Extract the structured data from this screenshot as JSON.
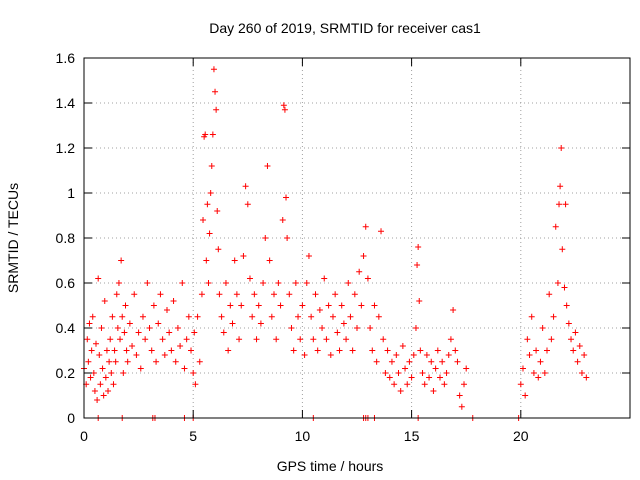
{
  "chart_data": {
    "type": "scatter",
    "title": "Day 260 of 2019, SRMTID for receiver cas1",
    "xlabel": "GPS time / hours",
    "ylabel": "SRMTID / TECUs",
    "xlim": [
      0,
      25
    ],
    "ylim": [
      0,
      1.6
    ],
    "xticks": [
      0,
      5,
      10,
      15,
      20
    ],
    "xtick_labels": [
      "0",
      "5",
      "10",
      "15",
      "20"
    ],
    "yticks": [
      0,
      0.2,
      0.4,
      0.6,
      0.8,
      1,
      1.2,
      1.4,
      1.6
    ],
    "ytick_labels": [
      "0",
      "0.2",
      "0.4",
      "0.6",
      "0.8",
      "1",
      "1.2",
      "1.4",
      "1.6"
    ],
    "grid": true,
    "marker": "+",
    "color": "#ff0000",
    "data_gaps_hours": [
      [
        17.6,
        19.9
      ]
    ],
    "series": [
      {
        "name": "cas1",
        "points": [
          [
            0.0,
            0.22
          ],
          [
            0.1,
            0.15
          ],
          [
            0.15,
            0.35
          ],
          [
            0.2,
            0.25
          ],
          [
            0.25,
            0.42
          ],
          [
            0.3,
            0.18
          ],
          [
            0.35,
            0.3
          ],
          [
            0.4,
            0.45
          ],
          [
            0.45,
            0.2
          ],
          [
            0.5,
            0.12
          ],
          [
            0.55,
            0.33
          ],
          [
            0.6,
            0.08
          ],
          [
            0.65,
            0.62
          ],
          [
            0.7,
            0.28
          ],
          [
            0.75,
            0.15
          ],
          [
            0.8,
            0.4
          ],
          [
            0.85,
            0.22
          ],
          [
            0.9,
            0.1
          ],
          [
            0.95,
            0.52
          ],
          [
            1.0,
            0.18
          ],
          [
            1.05,
            0.3
          ],
          [
            1.1,
            0.12
          ],
          [
            1.15,
            0.25
          ],
          [
            1.2,
            0.35
          ],
          [
            1.25,
            0.2
          ],
          [
            1.3,
            0.45
          ],
          [
            1.35,
            0.15
          ],
          [
            1.4,
            0.3
          ],
          [
            1.45,
            0.25
          ],
          [
            1.5,
            0.55
          ],
          [
            1.55,
            0.4
          ],
          [
            1.6,
            0.6
          ],
          [
            1.65,
            0.35
          ],
          [
            1.7,
            0.7
          ],
          [
            1.75,
            0.45
          ],
          [
            1.8,
            0.2
          ],
          [
            1.85,
            0.38
          ],
          [
            1.9,
            0.5
          ],
          [
            1.95,
            0.3
          ],
          [
            2.0,
            0.25
          ],
          [
            2.1,
            0.42
          ],
          [
            2.2,
            0.32
          ],
          [
            2.3,
            0.55
          ],
          [
            2.4,
            0.28
          ],
          [
            2.5,
            0.38
          ],
          [
            2.6,
            0.22
          ],
          [
            2.7,
            0.45
          ],
          [
            2.8,
            0.35
          ],
          [
            2.9,
            0.6
          ],
          [
            3.0,
            0.4
          ],
          [
            3.1,
            0.3
          ],
          [
            3.2,
            0.5
          ],
          [
            3.3,
            0.25
          ],
          [
            3.4,
            0.42
          ],
          [
            3.5,
            0.55
          ],
          [
            3.6,
            0.35
          ],
          [
            3.7,
            0.28
          ],
          [
            3.8,
            0.48
          ],
          [
            3.9,
            0.38
          ],
          [
            4.0,
            0.3
          ],
          [
            4.1,
            0.52
          ],
          [
            4.2,
            0.25
          ],
          [
            4.3,
            0.4
          ],
          [
            4.4,
            0.32
          ],
          [
            4.5,
            0.6
          ],
          [
            4.6,
            0.22
          ],
          [
            4.7,
            0.35
          ],
          [
            4.8,
            0.45
          ],
          [
            4.9,
            0.3
          ],
          [
            5.0,
            0.2
          ],
          [
            5.05,
            0.38
          ],
          [
            5.1,
            0.15
          ],
          [
            5.2,
            0.45
          ],
          [
            5.3,
            0.25
          ],
          [
            5.4,
            0.55
          ],
          [
            5.45,
            0.88
          ],
          [
            5.5,
            1.25
          ],
          [
            5.55,
            1.26
          ],
          [
            5.6,
            0.7
          ],
          [
            5.65,
            0.95
          ],
          [
            5.7,
            0.6
          ],
          [
            5.75,
            0.82
          ],
          [
            5.8,
            1.0
          ],
          [
            5.85,
            1.12
          ],
          [
            5.9,
            1.26
          ],
          [
            5.95,
            1.55
          ],
          [
            6.0,
            1.45
          ],
          [
            6.05,
            1.37
          ],
          [
            6.1,
            0.92
          ],
          [
            6.15,
            0.75
          ],
          [
            6.2,
            0.55
          ],
          [
            6.3,
            0.45
          ],
          [
            6.4,
            0.38
          ],
          [
            6.5,
            0.6
          ],
          [
            6.6,
            0.3
          ],
          [
            6.7,
            0.5
          ],
          [
            6.8,
            0.42
          ],
          [
            6.9,
            0.7
          ],
          [
            7.0,
            0.55
          ],
          [
            7.1,
            0.35
          ],
          [
            7.2,
            0.5
          ],
          [
            7.3,
            0.72
          ],
          [
            7.4,
            1.03
          ],
          [
            7.5,
            0.95
          ],
          [
            7.6,
            0.62
          ],
          [
            7.7,
            0.45
          ],
          [
            7.8,
            0.55
          ],
          [
            7.9,
            0.35
          ],
          [
            8.0,
            0.5
          ],
          [
            8.1,
            0.42
          ],
          [
            8.2,
            0.6
          ],
          [
            8.3,
            0.8
          ],
          [
            8.4,
            1.12
          ],
          [
            8.5,
            0.7
          ],
          [
            8.6,
            0.45
          ],
          [
            8.7,
            0.55
          ],
          [
            8.8,
            0.35
          ],
          [
            8.9,
            0.6
          ],
          [
            9.0,
            0.5
          ],
          [
            9.1,
            0.88
          ],
          [
            9.15,
            1.39
          ],
          [
            9.2,
            1.37
          ],
          [
            9.25,
            0.98
          ],
          [
            9.3,
            0.8
          ],
          [
            9.4,
            0.55
          ],
          [
            9.5,
            0.4
          ],
          [
            9.6,
            0.3
          ],
          [
            9.7,
            0.6
          ],
          [
            9.8,
            0.45
          ],
          [
            9.9,
            0.35
          ],
          [
            10.0,
            0.5
          ],
          [
            10.1,
            0.28
          ],
          [
            10.2,
            0.6
          ],
          [
            10.3,
            0.72
          ],
          [
            10.4,
            0.45
          ],
          [
            10.5,
            0.35
          ],
          [
            10.6,
            0.55
          ],
          [
            10.7,
            0.3
          ],
          [
            10.8,
            0.48
          ],
          [
            10.9,
            0.4
          ],
          [
            11.0,
            0.62
          ],
          [
            11.1,
            0.35
          ],
          [
            11.2,
            0.5
          ],
          [
            11.3,
            0.28
          ],
          [
            11.4,
            0.45
          ],
          [
            11.5,
            0.55
          ],
          [
            11.6,
            0.38
          ],
          [
            11.7,
            0.3
          ],
          [
            11.8,
            0.5
          ],
          [
            11.9,
            0.42
          ],
          [
            12.0,
            0.35
          ],
          [
            12.1,
            0.6
          ],
          [
            12.2,
            0.45
          ],
          [
            12.3,
            0.3
          ],
          [
            12.4,
            0.55
          ],
          [
            12.5,
            0.4
          ],
          [
            12.6,
            0.65
          ],
          [
            12.7,
            0.5
          ],
          [
            12.8,
            0.72
          ],
          [
            12.9,
            0.85
          ],
          [
            13.0,
            0.62
          ],
          [
            13.1,
            0.4
          ],
          [
            13.2,
            0.3
          ],
          [
            13.3,
            0.5
          ],
          [
            13.4,
            0.25
          ],
          [
            13.5,
            0.45
          ],
          [
            13.6,
            0.83
          ],
          [
            13.7,
            0.35
          ],
          [
            13.8,
            0.2
          ],
          [
            13.9,
            0.3
          ],
          [
            14.0,
            0.18
          ],
          [
            14.1,
            0.25
          ],
          [
            14.2,
            0.15
          ],
          [
            14.3,
            0.28
          ],
          [
            14.4,
            0.2
          ],
          [
            14.5,
            0.12
          ],
          [
            14.6,
            0.32
          ],
          [
            14.7,
            0.22
          ],
          [
            14.8,
            0.15
          ],
          [
            14.9,
            0.25
          ],
          [
            15.0,
            0.18
          ],
          [
            15.1,
            0.28
          ],
          [
            15.2,
            0.4
          ],
          [
            15.25,
            0.68
          ],
          [
            15.3,
            0.76
          ],
          [
            15.35,
            0.52
          ],
          [
            15.4,
            0.3
          ],
          [
            15.5,
            0.2
          ],
          [
            15.6,
            0.15
          ],
          [
            15.7,
            0.28
          ],
          [
            15.8,
            0.18
          ],
          [
            15.9,
            0.25
          ],
          [
            16.0,
            0.12
          ],
          [
            16.1,
            0.22
          ],
          [
            16.2,
            0.3
          ],
          [
            16.3,
            0.18
          ],
          [
            16.4,
            0.25
          ],
          [
            16.5,
            0.15
          ],
          [
            16.6,
            0.2
          ],
          [
            16.7,
            0.28
          ],
          [
            16.8,
            0.35
          ],
          [
            16.9,
            0.48
          ],
          [
            17.0,
            0.3
          ],
          [
            17.1,
            0.25
          ],
          [
            17.2,
            0.1
          ],
          [
            17.3,
            0.05
          ],
          [
            17.4,
            0.15
          ],
          [
            17.5,
            0.22
          ],
          [
            20.0,
            0.15
          ],
          [
            20.1,
            0.22
          ],
          [
            20.2,
            0.1
          ],
          [
            20.3,
            0.35
          ],
          [
            20.4,
            0.28
          ],
          [
            20.5,
            0.45
          ],
          [
            20.6,
            0.2
          ],
          [
            20.7,
            0.3
          ],
          [
            20.8,
            0.18
          ],
          [
            20.9,
            0.25
          ],
          [
            21.0,
            0.4
          ],
          [
            21.1,
            0.2
          ],
          [
            21.2,
            0.3
          ],
          [
            21.3,
            0.55
          ],
          [
            21.4,
            0.35
          ],
          [
            21.5,
            0.45
          ],
          [
            21.6,
            0.85
          ],
          [
            21.7,
            0.6
          ],
          [
            21.75,
            0.95
          ],
          [
            21.8,
            1.03
          ],
          [
            21.85,
            1.2
          ],
          [
            21.9,
            0.75
          ],
          [
            22.0,
            0.58
          ],
          [
            22.05,
            0.95
          ],
          [
            22.1,
            0.5
          ],
          [
            22.2,
            0.42
          ],
          [
            22.3,
            0.35
          ],
          [
            22.4,
            0.3
          ],
          [
            22.5,
            0.38
          ],
          [
            22.6,
            0.25
          ],
          [
            22.7,
            0.32
          ],
          [
            22.8,
            0.2
          ],
          [
            22.9,
            0.28
          ],
          [
            23.0,
            0.18
          ]
        ],
        "zero_points_x": [
          0.65,
          1.75,
          3.15,
          3.25,
          4.6,
          5.0,
          10.5,
          12.8,
          12.9,
          13.0,
          13.3,
          15.3,
          17.8,
          19.9
        ]
      }
    ]
  }
}
